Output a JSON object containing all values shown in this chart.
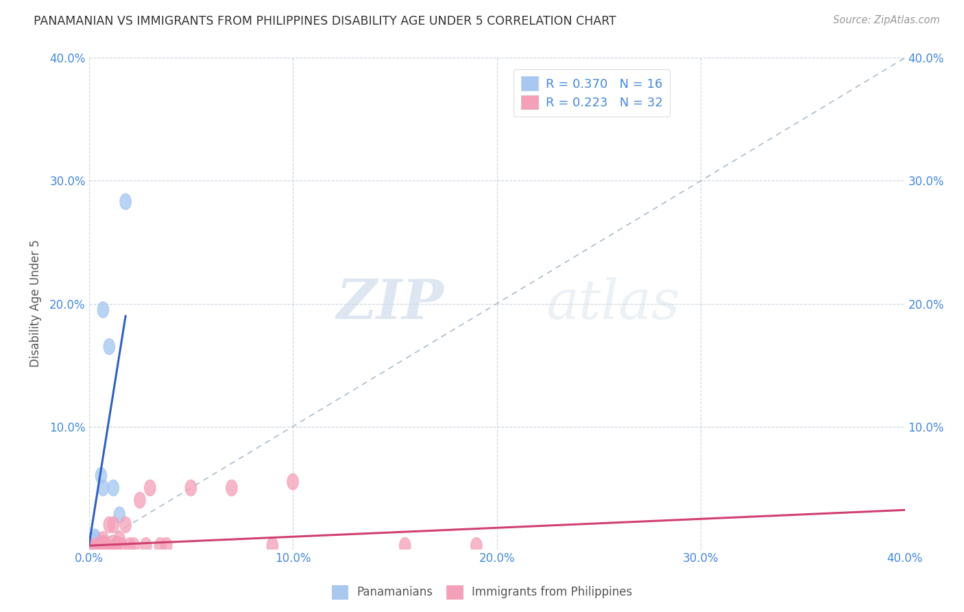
{
  "title": "PANAMANIAN VS IMMIGRANTS FROM PHILIPPINES DISABILITY AGE UNDER 5 CORRELATION CHART",
  "source": "Source: ZipAtlas.com",
  "ylabel": "Disability Age Under 5",
  "xlim": [
    0.0,
    0.4
  ],
  "ylim": [
    0.0,
    0.4
  ],
  "xtick_vals": [
    0.0,
    0.1,
    0.2,
    0.3,
    0.4
  ],
  "ytick_vals": [
    0.0,
    0.1,
    0.2,
    0.3,
    0.4
  ],
  "blue_color": "#a8c8f0",
  "pink_color": "#f4a0b8",
  "blue_line_color": "#3060c0",
  "pink_line_color": "#d04070",
  "dashed_line_color": "#aabccc",
  "tick_color": "#4488dd",
  "R_blue": 0.37,
  "N_blue": 16,
  "R_pink": 0.223,
  "N_pink": 32,
  "blue_x": [
    0.002,
    0.002,
    0.003,
    0.003,
    0.003,
    0.004,
    0.004,
    0.005,
    0.005,
    0.006,
    0.007,
    0.01,
    0.012,
    0.015,
    0.018,
    0.007
  ],
  "blue_y": [
    0.002,
    0.004,
    0.006,
    0.008,
    0.01,
    0.003,
    0.002,
    0.003,
    0.004,
    0.06,
    0.05,
    0.165,
    0.05,
    0.028,
    0.283,
    0.195
  ],
  "pink_x": [
    0.002,
    0.003,
    0.004,
    0.005,
    0.006,
    0.006,
    0.007,
    0.007,
    0.008,
    0.008,
    0.009,
    0.01,
    0.012,
    0.012,
    0.013,
    0.014,
    0.015,
    0.016,
    0.018,
    0.02,
    0.022,
    0.025,
    0.028,
    0.03,
    0.035,
    0.038,
    0.05,
    0.07,
    0.09,
    0.1,
    0.155,
    0.19
  ],
  "pink_y": [
    0.002,
    0.002,
    0.003,
    0.002,
    0.003,
    0.002,
    0.008,
    0.005,
    0.004,
    0.002,
    0.002,
    0.02,
    0.02,
    0.005,
    0.003,
    0.004,
    0.008,
    0.003,
    0.02,
    0.003,
    0.003,
    0.04,
    0.003,
    0.05,
    0.003,
    0.003,
    0.05,
    0.05,
    0.003,
    0.055,
    0.003,
    0.003
  ],
  "watermark_zip": "ZIP",
  "watermark_atlas": "atlas",
  "background_color": "#ffffff",
  "grid_color": "#c8d4e0"
}
